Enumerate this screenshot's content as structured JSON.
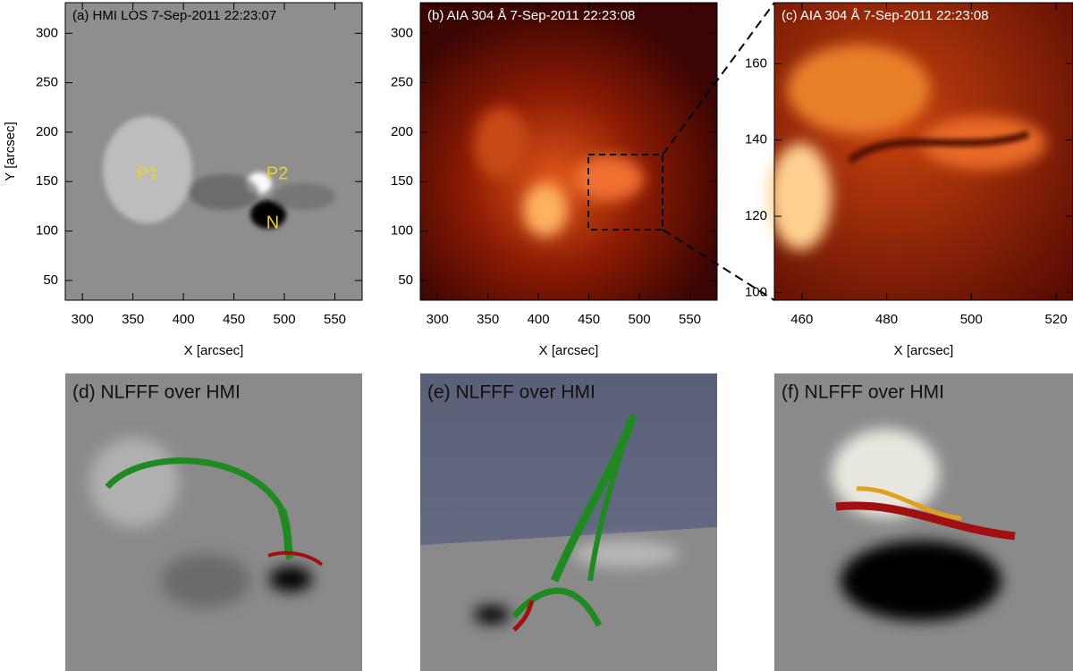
{
  "panels": [
    {
      "title": "(a) HMI LOS 7-Sep-2011 22:23:07",
      "xlabel": "X [arcsec]",
      "ylabel": "Y [arcsec]",
      "xlim": [
        283,
        577
      ],
      "ylim": [
        30,
        331
      ],
      "xticks": [
        300,
        350,
        400,
        450,
        500,
        550
      ],
      "yticks": [
        50,
        100,
        150,
        200,
        250,
        300
      ],
      "annotations": [
        "P1",
        "P2",
        "N"
      ]
    },
    {
      "title": "(b) AIA 304 Å  7-Sep-2011 22:23:08",
      "xlabel": "X [arcsec]",
      "xlim": [
        283,
        577
      ],
      "ylim": [
        30,
        331
      ],
      "xticks": [
        300,
        350,
        400,
        450,
        500,
        550
      ],
      "yticks": [
        50,
        100,
        150,
        200,
        250,
        300
      ]
    },
    {
      "title": "(c) AIA 304 Å  7-Sep-2011 22:23:08",
      "xlabel": "X [arcsec]",
      "xlim": [
        453.5,
        524
      ],
      "ylim": [
        98,
        176
      ],
      "xticks": [
        460,
        480,
        500,
        520
      ],
      "yticks": [
        100,
        120,
        140,
        160
      ]
    }
  ],
  "models": [
    {
      "title": "(d) NLFFF over HMI"
    },
    {
      "title": "(e) NLFFF over HMI"
    },
    {
      "title": "(f) NLFFF over HMI"
    }
  ]
}
